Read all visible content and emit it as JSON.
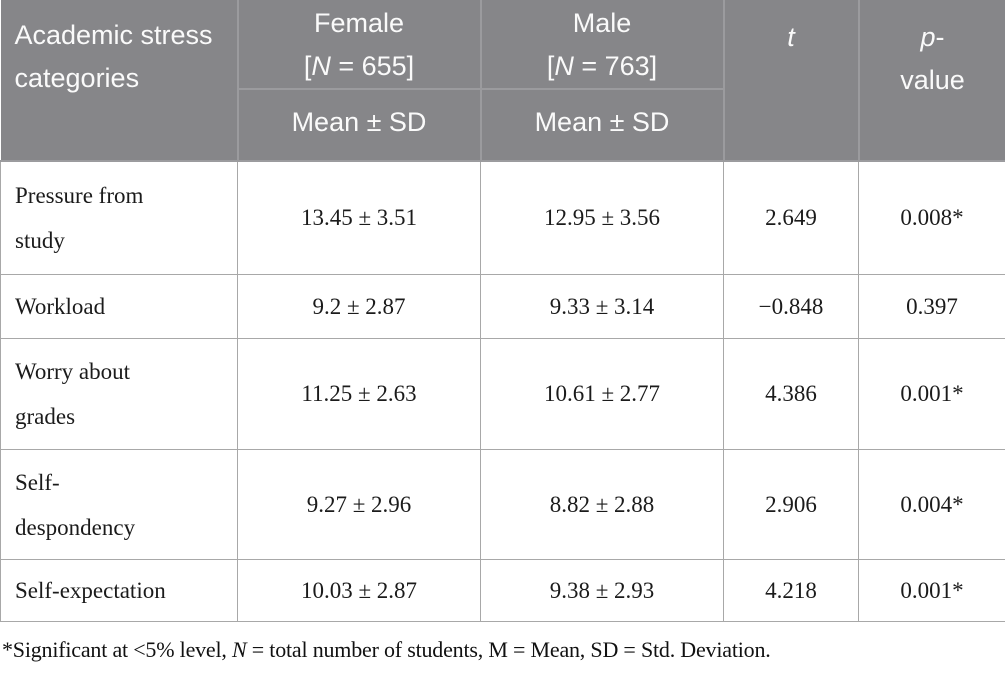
{
  "colors": {
    "header_bg": "#868689",
    "header_line": "#9b9b9e",
    "header_text": "#fafafa",
    "border": "#a8a8a8",
    "body_text": "#1b1b1b",
    "page_bg": "#ffffff"
  },
  "table": {
    "header": {
      "category_label": "Academic stress categories",
      "female": {
        "name": "Female",
        "bracket_pre": "[",
        "n_symbol": "N",
        "bracket_post": " = 655]",
        "stat_label": "Mean ± SD"
      },
      "male": {
        "name": "Male",
        "bracket_pre": "[",
        "n_symbol": "N",
        "bracket_post": " = 763]",
        "stat_label": "Mean ± SD"
      },
      "t_label": "t",
      "p_symbol": "p",
      "p_hyphen": "-",
      "p_second_line": "value"
    },
    "rows": [
      {
        "category": "Pressure from\nstudy",
        "female_mean_sd": "13.45 ± 3.51",
        "male_mean_sd": "12.95 ± 3.56",
        "t": "2.649",
        "p": "0.008*"
      },
      {
        "category": "Workload",
        "female_mean_sd": "9.2 ± 2.87",
        "male_mean_sd": "9.33 ± 3.14",
        "t": "−0.848",
        "p": "0.397"
      },
      {
        "category": "Worry about\ngrades",
        "female_mean_sd": "11.25 ± 2.63",
        "male_mean_sd": "10.61 ± 2.77",
        "t": "4.386",
        "p": "0.001*"
      },
      {
        "category": "Self-\ndespondency",
        "female_mean_sd": "9.27 ± 2.96",
        "male_mean_sd": "8.82 ± 2.88",
        "t": "2.906",
        "p": "0.004*"
      },
      {
        "category": "Self-expectation",
        "female_mean_sd": "10.03 ± 2.87",
        "male_mean_sd": "9.38 ± 2.93",
        "t": "4.218",
        "p": "0.001*"
      }
    ],
    "footnote": {
      "pre": "*Significant at <5% level, ",
      "n_symbol": "N",
      "post": " = total number of students, M = Mean, SD = Std. Deviation."
    }
  }
}
